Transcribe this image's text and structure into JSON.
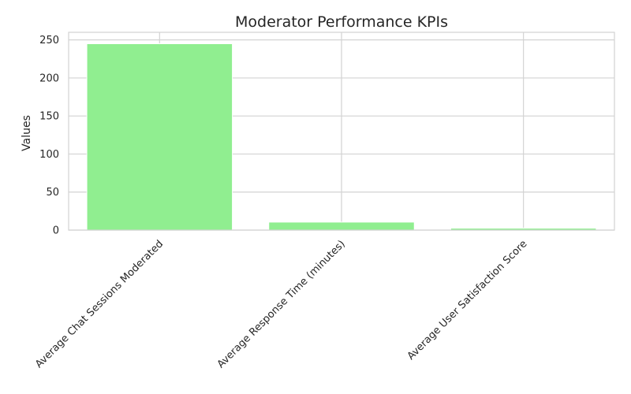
{
  "chart_data": {
    "type": "bar",
    "title": "Moderator Performance KPIs",
    "xlabel": "",
    "ylabel": "Values",
    "categories": [
      "Average Chat Sessions Moderated",
      "Average Response Time (minutes)",
      "Average User Satisfaction Score"
    ],
    "values": [
      245,
      10.5,
      2.5
    ],
    "ylim": [
      0,
      260
    ],
    "yticks": [
      0,
      50,
      100,
      150,
      200,
      250
    ],
    "grid": true,
    "bar_color": "#90ee90",
    "grid_color": "#d3d3d3"
  }
}
